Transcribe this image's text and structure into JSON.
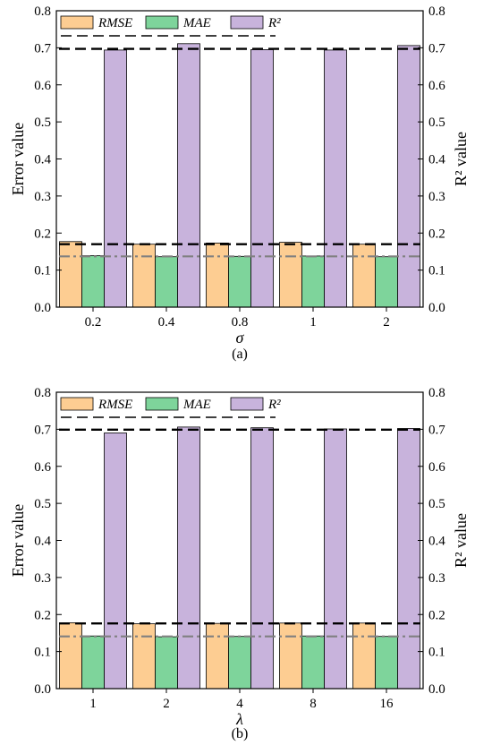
{
  "chart_data": [
    {
      "type": "bar",
      "panel": "a",
      "caption": "(a)",
      "xlabel": "σ",
      "ylabel": "Error value",
      "ylabel_right": "R² value",
      "categories": [
        "0.2",
        "0.4",
        "0.8",
        "1",
        "2"
      ],
      "ylim": [
        0,
        0.8
      ],
      "yticks": [
        "0.0",
        "0.1",
        "0.2",
        "0.3",
        "0.4",
        "0.5",
        "0.6",
        "0.7",
        "0.8"
      ],
      "series": [
        {
          "name": "RMSE",
          "color": "#fdcd92",
          "values": [
            0.177,
            0.17,
            0.173,
            0.175,
            0.17
          ]
        },
        {
          "name": "MAE",
          "color": "#7ed49b",
          "values": [
            0.139,
            0.136,
            0.137,
            0.138,
            0.136
          ]
        },
        {
          "name": "R²",
          "color": "#c8b3dc",
          "values": [
            0.694,
            0.711,
            0.695,
            0.694,
            0.706
          ]
        }
      ],
      "reference_lines": [
        {
          "value": 0.697,
          "style": "dashed",
          "color": "#000000"
        },
        {
          "value": 0.17,
          "style": "dashed",
          "color": "#000000"
        },
        {
          "value": 0.137,
          "style": "dash-dot",
          "color": "#808080"
        }
      ],
      "legend": "top",
      "grid": false
    },
    {
      "type": "bar",
      "panel": "b",
      "caption": "(b)",
      "xlabel": "λ",
      "ylabel": "Error value",
      "ylabel_right": "R² value",
      "categories": [
        "1",
        "2",
        "4",
        "8",
        "16"
      ],
      "ylim": [
        0,
        0.8
      ],
      "yticks": [
        "0.0",
        "0.1",
        "0.2",
        "0.3",
        "0.4",
        "0.5",
        "0.6",
        "0.7",
        "0.8"
      ],
      "series": [
        {
          "name": "RMSE",
          "color": "#fdcd92",
          "values": [
            0.178,
            0.175,
            0.176,
            0.177,
            0.177
          ]
        },
        {
          "name": "MAE",
          "color": "#7ed49b",
          "values": [
            0.142,
            0.14,
            0.141,
            0.142,
            0.141
          ]
        },
        {
          "name": "R²",
          "color": "#c8b3dc",
          "values": [
            0.69,
            0.706,
            0.704,
            0.701,
            0.702
          ]
        }
      ],
      "reference_lines": [
        {
          "value": 0.699,
          "style": "dashed",
          "color": "#000000"
        },
        {
          "value": 0.176,
          "style": "dashed",
          "color": "#000000"
        },
        {
          "value": 0.141,
          "style": "dash-dot",
          "color": "#808080"
        }
      ],
      "legend": "top",
      "grid": false
    }
  ]
}
